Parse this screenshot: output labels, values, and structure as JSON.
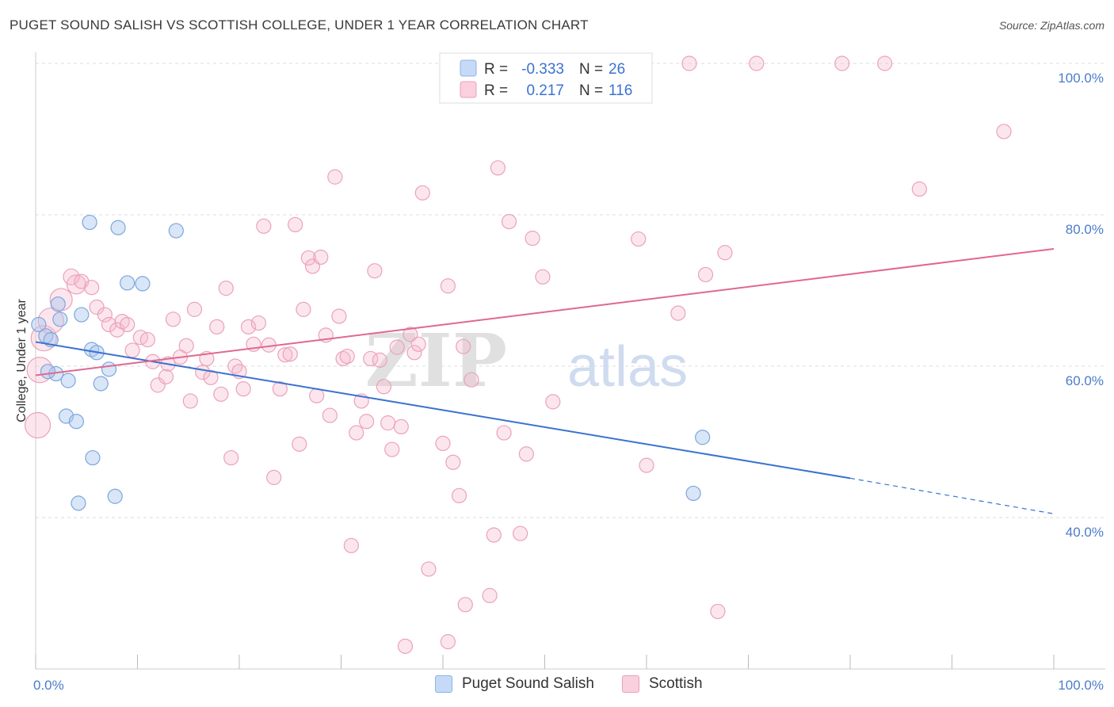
{
  "title": "PUGET SOUND SALISH VS SCOTTISH COLLEGE, UNDER 1 YEAR CORRELATION CHART",
  "source": "Source: ZipAtlas.com",
  "colors": {
    "blue": "#4a7cc9",
    "blue_fill": "#a8c8f0",
    "pink": "#e06890",
    "pink_fill": "#f5b8cc",
    "grid": "#dddddd",
    "axis_label": "#4a7cc9"
  },
  "chart_data": {
    "type": "scatter",
    "title": "PUGET SOUND SALISH VS SCOTTISH COLLEGE, UNDER 1 YEAR CORRELATION CHART",
    "xlabel": "",
    "ylabel": "College, Under 1 year",
    "xlim": [
      0,
      100
    ],
    "ylim": [
      20,
      102
    ],
    "x_tick_labels": [
      "0.0%",
      "100.0%"
    ],
    "y_ticks": [
      40,
      60,
      80,
      100
    ],
    "y_tick_labels": [
      "40.0%",
      "60.0%",
      "80.0%",
      "100.0%"
    ],
    "grid": true,
    "legend_position": "top-center",
    "watermark": {
      "part1": "ZIP",
      "part2": "atlas"
    },
    "stats": [
      {
        "r_label": "R =",
        "r_value": "-0.333",
        "n_label": "N =",
        "n_value": "26"
      },
      {
        "r_label": "R =",
        "r_value": "0.217",
        "n_label": "N =",
        "n_value": "116"
      }
    ],
    "series": [
      {
        "name": "Puget Sound Salish",
        "color": "#4a7cc9",
        "trend": {
          "x0": 0,
          "y0": 63.2,
          "x1": 80,
          "y1": 45.2,
          "dash_to_x": 100,
          "dash_to_y": 40.5
        },
        "points": [
          [
            0.3,
            65.5,
            9
          ],
          [
            1.0,
            64.0,
            9
          ],
          [
            1.5,
            63.5,
            9
          ],
          [
            2.2,
            68.2,
            9
          ],
          [
            2.4,
            66.2,
            9
          ],
          [
            4.5,
            66.8,
            9
          ],
          [
            5.3,
            79.0,
            9
          ],
          [
            5.5,
            62.2,
            9
          ],
          [
            6.0,
            61.8,
            9
          ],
          [
            7.2,
            59.6,
            9
          ],
          [
            8.1,
            78.3,
            9
          ],
          [
            9.0,
            71.0,
            9
          ],
          [
            10.5,
            70.9,
            9
          ],
          [
            13.8,
            77.9,
            9
          ],
          [
            2.0,
            59.0,
            9
          ],
          [
            3.2,
            58.1,
            9
          ],
          [
            6.4,
            57.7,
            9
          ],
          [
            3.0,
            53.4,
            9
          ],
          [
            4.0,
            52.7,
            9
          ],
          [
            5.6,
            47.9,
            9
          ],
          [
            7.8,
            42.8,
            9
          ],
          [
            4.2,
            41.9,
            9
          ],
          [
            1.2,
            59.3,
            9
          ],
          [
            64.6,
            43.2,
            9
          ],
          [
            64.9,
            44.0,
            0
          ],
          [
            65.5,
            50.6,
            9
          ]
        ]
      },
      {
        "name": "Scottish",
        "color": "#e06890",
        "trend": {
          "x0": 0,
          "y0": 58.8,
          "x1": 100,
          "y1": 75.5
        },
        "points": [
          [
            0.2,
            52.2,
            16
          ],
          [
            0.4,
            59.5,
            16
          ],
          [
            0.8,
            63.7,
            16
          ],
          [
            1.5,
            66.0,
            16
          ],
          [
            2.5,
            68.8,
            14
          ],
          [
            4.0,
            70.8,
            12
          ],
          [
            3.5,
            71.8,
            10
          ],
          [
            4.5,
            71.2,
            9
          ],
          [
            5.5,
            70.4,
            9
          ],
          [
            6.0,
            67.8,
            9
          ],
          [
            6.8,
            66.8,
            9
          ],
          [
            7.2,
            65.5,
            9
          ],
          [
            8.0,
            64.8,
            9
          ],
          [
            8.5,
            65.9,
            9
          ],
          [
            9.0,
            65.5,
            9
          ],
          [
            9.5,
            62.1,
            9
          ],
          [
            10.3,
            63.8,
            9
          ],
          [
            11.0,
            63.5,
            9
          ],
          [
            11.5,
            60.6,
            9
          ],
          [
            12.0,
            57.5,
            9
          ],
          [
            12.8,
            58.6,
            9
          ],
          [
            13.0,
            60.3,
            9
          ],
          [
            13.5,
            66.2,
            9
          ],
          [
            14.2,
            61.2,
            9
          ],
          [
            14.8,
            62.7,
            9
          ],
          [
            15.2,
            55.4,
            9
          ],
          [
            15.6,
            67.5,
            9
          ],
          [
            16.4,
            59.2,
            9
          ],
          [
            16.8,
            61.0,
            9
          ],
          [
            17.2,
            58.5,
            9
          ],
          [
            17.8,
            65.2,
            9
          ],
          [
            18.2,
            56.3,
            9
          ],
          [
            18.7,
            70.3,
            9
          ],
          [
            19.2,
            47.9,
            9
          ],
          [
            19.6,
            60.0,
            9
          ],
          [
            20.0,
            59.3,
            9
          ],
          [
            20.4,
            57.0,
            9
          ],
          [
            20.9,
            65.2,
            9
          ],
          [
            21.4,
            62.9,
            9
          ],
          [
            21.9,
            65.7,
            9
          ],
          [
            22.4,
            78.5,
            9
          ],
          [
            22.9,
            62.8,
            9
          ],
          [
            23.4,
            45.3,
            9
          ],
          [
            24.0,
            57.0,
            9
          ],
          [
            24.5,
            61.5,
            9
          ],
          [
            25.0,
            61.6,
            9
          ],
          [
            25.5,
            78.7,
            9
          ],
          [
            25.9,
            49.7,
            9
          ],
          [
            26.3,
            67.5,
            9
          ],
          [
            26.8,
            74.3,
            9
          ],
          [
            27.2,
            73.2,
            9
          ],
          [
            27.6,
            56.1,
            9
          ],
          [
            28.0,
            74.4,
            9
          ],
          [
            28.5,
            64.1,
            9
          ],
          [
            28.9,
            53.5,
            9
          ],
          [
            29.4,
            85.0,
            9
          ],
          [
            29.8,
            66.6,
            9
          ],
          [
            30.2,
            61.0,
            9
          ],
          [
            30.6,
            61.3,
            9
          ],
          [
            31.0,
            36.3,
            9
          ],
          [
            31.5,
            51.2,
            9
          ],
          [
            32.0,
            55.4,
            9
          ],
          [
            32.5,
            52.7,
            9
          ],
          [
            32.9,
            61.0,
            9
          ],
          [
            33.3,
            72.6,
            9
          ],
          [
            33.8,
            60.8,
            9
          ],
          [
            34.2,
            57.3,
            9
          ],
          [
            34.6,
            52.5,
            9
          ],
          [
            35.0,
            49.0,
            9
          ],
          [
            35.5,
            62.5,
            9
          ],
          [
            35.9,
            52.0,
            9
          ],
          [
            36.3,
            23.0,
            9
          ],
          [
            36.8,
            64.2,
            9
          ],
          [
            37.2,
            61.8,
            9
          ],
          [
            37.6,
            62.9,
            9
          ],
          [
            38.0,
            82.9,
            9
          ],
          [
            38.6,
            33.2,
            9
          ],
          [
            40.0,
            49.8,
            9
          ],
          [
            40.5,
            70.6,
            9
          ],
          [
            41.0,
            47.3,
            9
          ],
          [
            41.6,
            42.9,
            9
          ],
          [
            42.0,
            62.6,
            9
          ],
          [
            42.2,
            28.5,
            9
          ],
          [
            42.8,
            58.2,
            9
          ],
          [
            44.0,
            100.0,
            9
          ],
          [
            44.6,
            29.7,
            9
          ],
          [
            45.0,
            37.7,
            9
          ],
          [
            45.4,
            86.2,
            9
          ],
          [
            46.0,
            51.2,
            9
          ],
          [
            46.5,
            79.1,
            9
          ],
          [
            47.0,
            100.1,
            9
          ],
          [
            47.6,
            37.9,
            9
          ],
          [
            48.2,
            48.4,
            9
          ],
          [
            48.8,
            76.9,
            9
          ],
          [
            49.8,
            71.8,
            9
          ],
          [
            50.8,
            55.3,
            9
          ],
          [
            52.0,
            100.1,
            9
          ],
          [
            55.0,
            100.0,
            9
          ],
          [
            59.0,
            100.0,
            9
          ],
          [
            59.2,
            76.8,
            9
          ],
          [
            60.0,
            46.9,
            9
          ],
          [
            63.1,
            67.0,
            9
          ],
          [
            64.2,
            100.0,
            9
          ],
          [
            65.8,
            72.1,
            9
          ],
          [
            67.0,
            27.6,
            9
          ],
          [
            67.7,
            75.0,
            9
          ],
          [
            70.8,
            100.0,
            9
          ],
          [
            83.4,
            100.0,
            9
          ],
          [
            95.1,
            91.0,
            9
          ],
          [
            40.5,
            23.6,
            9
          ],
          [
            28.8,
            100.0,
            0
          ],
          [
            55.5,
            100.0,
            0
          ],
          [
            41.0,
            100.0,
            9
          ],
          [
            86.8,
            83.4,
            9
          ],
          [
            61.4,
            100.0,
            0
          ],
          [
            79.2,
            100.0,
            9
          ]
        ]
      }
    ]
  },
  "bottom_legend": [
    {
      "label": "Puget Sound Salish"
    },
    {
      "label": "Scottish"
    }
  ]
}
